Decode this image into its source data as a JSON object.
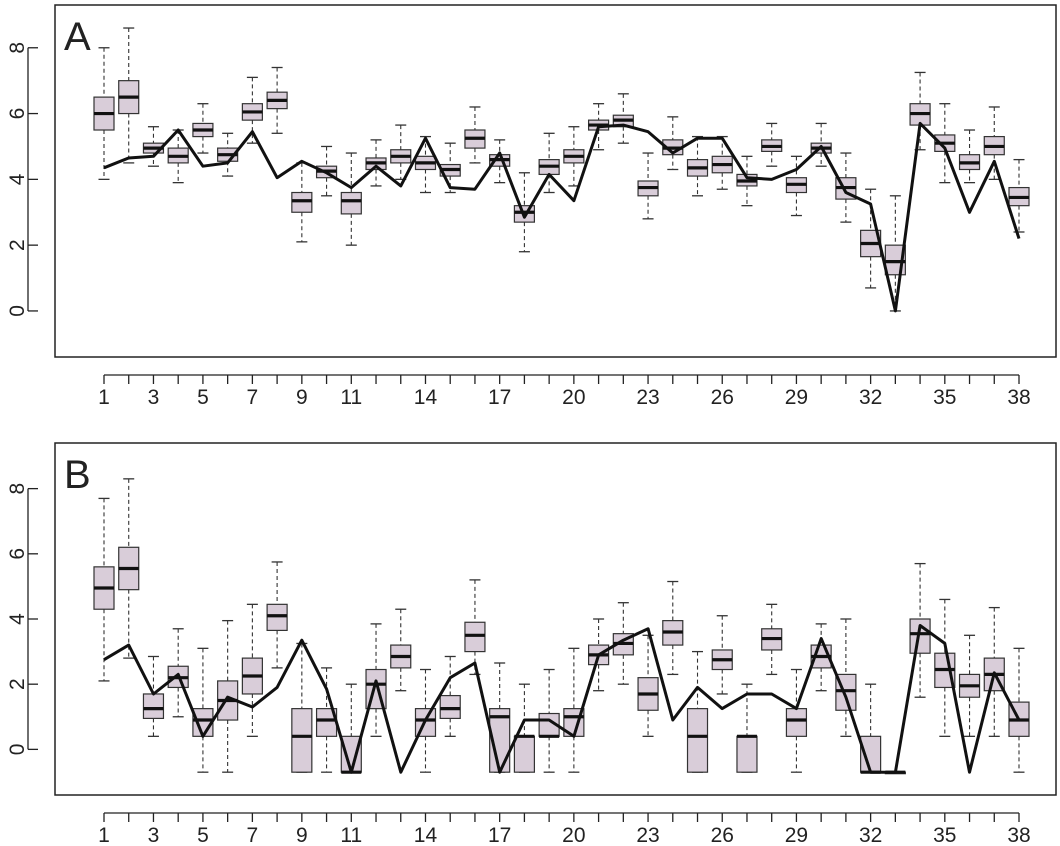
{
  "chart_data": [
    {
      "type": "box",
      "panel_label": "A",
      "x_tick_labels": [
        "1",
        "3",
        "5",
        "7",
        "9",
        "11",
        "14",
        "17",
        "20",
        "23",
        "26",
        "29",
        "32",
        "35",
        "38"
      ],
      "x_tick_positions": [
        1,
        3,
        5,
        7,
        9,
        11,
        14,
        17,
        20,
        23,
        26,
        29,
        32,
        35,
        38
      ],
      "y_tick_labels": [
        "0",
        "2",
        "4",
        "6",
        "8"
      ],
      "y_ticks": [
        0,
        2,
        4,
        6,
        8
      ],
      "xlim": [
        0.5,
        38.5
      ],
      "ylim": [
        -1.4,
        9.3
      ],
      "box_fill": "#d9cdd9",
      "line_color": "#111111",
      "boxes": [
        {
          "x": 1,
          "min": 4.0,
          "q1": 5.5,
          "median": 6.0,
          "q3": 6.5,
          "max": 8.0
        },
        {
          "x": 2,
          "min": 4.5,
          "q1": 6.0,
          "median": 6.5,
          "q3": 7.0,
          "max": 8.6
        },
        {
          "x": 3,
          "min": 4.4,
          "q1": 4.8,
          "median": 4.95,
          "q3": 5.1,
          "max": 5.6
        },
        {
          "x": 4,
          "min": 3.9,
          "q1": 4.5,
          "median": 4.7,
          "q3": 4.95,
          "max": 5.5
        },
        {
          "x": 5,
          "min": 4.8,
          "q1": 5.3,
          "median": 5.5,
          "q3": 5.7,
          "max": 6.3
        },
        {
          "x": 6,
          "min": 4.1,
          "q1": 4.55,
          "median": 4.75,
          "q3": 4.95,
          "max": 5.4
        },
        {
          "x": 7,
          "min": 5.1,
          "q1": 5.8,
          "median": 6.05,
          "q3": 6.3,
          "max": 7.1
        },
        {
          "x": 8,
          "min": 5.4,
          "q1": 6.15,
          "median": 6.4,
          "q3": 6.65,
          "max": 7.4
        },
        {
          "x": 9,
          "min": 2.1,
          "q1": 3.0,
          "median": 3.35,
          "q3": 3.6,
          "max": 4.5
        },
        {
          "x": 10,
          "min": 3.5,
          "q1": 4.05,
          "median": 4.25,
          "q3": 4.4,
          "max": 5.0
        },
        {
          "x": 11,
          "min": 2.0,
          "q1": 2.95,
          "median": 3.35,
          "q3": 3.6,
          "max": 4.8
        },
        {
          "x": 12,
          "min": 3.8,
          "q1": 4.3,
          "median": 4.5,
          "q3": 4.65,
          "max": 5.2
        },
        {
          "x": 13,
          "min": 4.0,
          "q1": 4.5,
          "median": 4.7,
          "q3": 4.9,
          "max": 5.65
        },
        {
          "x": 14,
          "min": 3.6,
          "q1": 4.3,
          "median": 4.5,
          "q3": 4.7,
          "max": 5.3
        },
        {
          "x": 15,
          "min": 3.6,
          "q1": 4.1,
          "median": 4.3,
          "q3": 4.45,
          "max": 5.1
        },
        {
          "x": 16,
          "min": 4.5,
          "q1": 4.95,
          "median": 5.25,
          "q3": 5.5,
          "max": 6.2
        },
        {
          "x": 17,
          "min": 3.9,
          "q1": 4.4,
          "median": 4.6,
          "q3": 4.75,
          "max": 5.2
        },
        {
          "x": 18,
          "min": 1.8,
          "q1": 2.7,
          "median": 3.0,
          "q3": 3.2,
          "max": 4.2
        },
        {
          "x": 19,
          "min": 3.6,
          "q1": 4.15,
          "median": 4.4,
          "q3": 4.6,
          "max": 5.4
        },
        {
          "x": 20,
          "min": 3.8,
          "q1": 4.5,
          "median": 4.7,
          "q3": 4.9,
          "max": 5.6
        },
        {
          "x": 21,
          "min": 4.9,
          "q1": 5.5,
          "median": 5.65,
          "q3": 5.8,
          "max": 6.3
        },
        {
          "x": 22,
          "min": 5.1,
          "q1": 5.6,
          "median": 5.8,
          "q3": 5.95,
          "max": 6.6
        },
        {
          "x": 23,
          "min": 2.8,
          "q1": 3.5,
          "median": 3.75,
          "q3": 3.95,
          "max": 4.8
        },
        {
          "x": 24,
          "min": 4.3,
          "q1": 4.75,
          "median": 4.95,
          "q3": 5.2,
          "max": 5.9
        },
        {
          "x": 25,
          "min": 3.5,
          "q1": 4.1,
          "median": 4.35,
          "q3": 4.6,
          "max": 5.3
        },
        {
          "x": 26,
          "min": 3.7,
          "q1": 4.2,
          "median": 4.45,
          "q3": 4.7,
          "max": 5.3
        },
        {
          "x": 27,
          "min": 3.2,
          "q1": 3.8,
          "median": 3.95,
          "q3": 4.15,
          "max": 4.7
        },
        {
          "x": 28,
          "min": 4.4,
          "q1": 4.85,
          "median": 5.0,
          "q3": 5.2,
          "max": 5.7
        },
        {
          "x": 29,
          "min": 2.9,
          "q1": 3.6,
          "median": 3.85,
          "q3": 4.05,
          "max": 4.7
        },
        {
          "x": 30,
          "min": 4.4,
          "q1": 4.8,
          "median": 4.95,
          "q3": 5.1,
          "max": 5.7
        },
        {
          "x": 31,
          "min": 2.7,
          "q1": 3.4,
          "median": 3.75,
          "q3": 4.05,
          "max": 4.8
        },
        {
          "x": 32,
          "min": 0.7,
          "q1": 1.65,
          "median": 2.05,
          "q3": 2.45,
          "max": 3.7
        },
        {
          "x": 33,
          "min": 0.0,
          "q1": 1.1,
          "median": 1.5,
          "q3": 2.0,
          "max": 3.5
        },
        {
          "x": 34,
          "min": 4.9,
          "q1": 5.65,
          "median": 6.0,
          "q3": 6.3,
          "max": 7.25
        },
        {
          "x": 35,
          "min": 3.9,
          "q1": 4.85,
          "median": 5.1,
          "q3": 5.35,
          "max": 6.3
        },
        {
          "x": 36,
          "min": 3.9,
          "q1": 4.3,
          "median": 4.5,
          "q3": 4.75,
          "max": 5.5
        },
        {
          "x": 37,
          "min": 4.0,
          "q1": 4.75,
          "median": 5.0,
          "q3": 5.3,
          "max": 6.2
        },
        {
          "x": 38,
          "min": 2.4,
          "q1": 3.2,
          "median": 3.45,
          "q3": 3.75,
          "max": 4.6
        }
      ],
      "line_values": [
        4.35,
        4.65,
        4.7,
        5.5,
        4.4,
        4.5,
        5.45,
        4.05,
        4.55,
        4.2,
        3.75,
        4.4,
        3.8,
        5.25,
        3.75,
        3.7,
        4.8,
        2.85,
        4.15,
        3.35,
        5.6,
        5.65,
        5.45,
        4.8,
        5.25,
        5.25,
        4.05,
        4.0,
        4.3,
        5.0,
        3.6,
        3.25,
        0.0,
        5.7,
        4.95,
        3.0,
        4.55,
        2.2
      ]
    },
    {
      "type": "box",
      "panel_label": "B",
      "x_tick_labels": [
        "1",
        "3",
        "5",
        "7",
        "9",
        "11",
        "14",
        "17",
        "20",
        "23",
        "26",
        "29",
        "32",
        "35",
        "38"
      ],
      "x_tick_positions": [
        1,
        3,
        5,
        7,
        9,
        11,
        14,
        17,
        20,
        23,
        26,
        29,
        32,
        35,
        38
      ],
      "y_tick_labels": [
        "0",
        "2",
        "4",
        "6",
        "8"
      ],
      "y_ticks": [
        0,
        2,
        4,
        6,
        8
      ],
      "xlim": [
        0.5,
        38.5
      ],
      "ylim": [
        -1.4,
        9.4
      ],
      "box_fill": "#d9cdd9",
      "line_color": "#111111",
      "boxes": [
        {
          "x": 1,
          "min": 2.1,
          "q1": 4.3,
          "median": 4.95,
          "q3": 5.6,
          "max": 7.7
        },
        {
          "x": 2,
          "min": 2.8,
          "q1": 4.9,
          "median": 5.55,
          "q3": 6.2,
          "max": 8.3
        },
        {
          "x": 3,
          "min": 0.4,
          "q1": 0.95,
          "median": 1.25,
          "q3": 1.7,
          "max": 2.85
        },
        {
          "x": 4,
          "min": 1.0,
          "q1": 1.9,
          "median": 2.2,
          "q3": 2.55,
          "max": 3.7
        },
        {
          "x": 5,
          "min": -0.7,
          "q1": 0.4,
          "median": 0.9,
          "q3": 1.25,
          "max": 3.1
        },
        {
          "x": 6,
          "min": -0.7,
          "q1": 0.9,
          "median": 1.5,
          "q3": 2.1,
          "max": 3.95
        },
        {
          "x": 7,
          "min": 0.4,
          "q1": 1.7,
          "median": 2.25,
          "q3": 2.8,
          "max": 4.45
        },
        {
          "x": 8,
          "min": 2.5,
          "q1": 3.65,
          "median": 4.1,
          "q3": 4.45,
          "max": 5.75
        },
        {
          "x": 9,
          "min": -0.7,
          "q1": -0.7,
          "median": 0.4,
          "q3": 1.25,
          "max": 3.25
        },
        {
          "x": 10,
          "min": -0.7,
          "q1": 0.4,
          "median": 0.9,
          "q3": 1.25,
          "max": 2.5
        },
        {
          "x": 11,
          "min": -0.7,
          "q1": -0.7,
          "median": -0.7,
          "q3": 0.4,
          "max": 2.0
        },
        {
          "x": 12,
          "min": 0.4,
          "q1": 1.25,
          "median": 2.0,
          "q3": 2.45,
          "max": 3.85
        },
        {
          "x": 13,
          "min": 1.8,
          "q1": 2.5,
          "median": 2.85,
          "q3": 3.2,
          "max": 4.3
        },
        {
          "x": 14,
          "min": -0.7,
          "q1": 0.4,
          "median": 0.9,
          "q3": 1.25,
          "max": 2.45
        },
        {
          "x": 15,
          "min": 0.4,
          "q1": 0.95,
          "median": 1.25,
          "q3": 1.65,
          "max": 2.85
        },
        {
          "x": 16,
          "min": 2.3,
          "q1": 3.0,
          "median": 3.5,
          "q3": 3.9,
          "max": 5.2
        },
        {
          "x": 17,
          "min": -0.7,
          "q1": -0.7,
          "median": 1.0,
          "q3": 1.25,
          "max": 2.65
        },
        {
          "x": 18,
          "min": -0.7,
          "q1": -0.7,
          "median": 0.4,
          "q3": 0.4,
          "max": 2.0
        },
        {
          "x": 19,
          "min": -0.7,
          "q1": 0.4,
          "median": 0.4,
          "q3": 1.1,
          "max": 2.45
        },
        {
          "x": 20,
          "min": -0.7,
          "q1": 0.4,
          "median": 1.0,
          "q3": 1.25,
          "max": 3.1
        },
        {
          "x": 21,
          "min": 1.8,
          "q1": 2.6,
          "median": 2.9,
          "q3": 3.2,
          "max": 4.0
        },
        {
          "x": 22,
          "min": 2.0,
          "q1": 2.9,
          "median": 3.25,
          "q3": 3.55,
          "max": 4.5
        },
        {
          "x": 23,
          "min": 0.4,
          "q1": 1.2,
          "median": 1.7,
          "q3": 2.2,
          "max": 3.5
        },
        {
          "x": 24,
          "min": 2.3,
          "q1": 3.2,
          "median": 3.6,
          "q3": 3.95,
          "max": 5.15
        },
        {
          "x": 25,
          "min": -0.7,
          "q1": -0.7,
          "median": 0.4,
          "q3": 1.25,
          "max": 3.0
        },
        {
          "x": 26,
          "min": 1.7,
          "q1": 2.45,
          "median": 2.75,
          "q3": 3.05,
          "max": 4.1
        },
        {
          "x": 27,
          "min": -0.7,
          "q1": -0.7,
          "median": 0.4,
          "q3": 0.4,
          "max": 2.0
        },
        {
          "x": 28,
          "min": 2.3,
          "q1": 3.05,
          "median": 3.4,
          "q3": 3.7,
          "max": 4.45
        },
        {
          "x": 29,
          "min": -0.7,
          "q1": 0.4,
          "median": 0.9,
          "q3": 1.25,
          "max": 2.45
        },
        {
          "x": 30,
          "min": 1.8,
          "q1": 2.5,
          "median": 2.85,
          "q3": 3.2,
          "max": 3.85
        },
        {
          "x": 31,
          "min": 0.4,
          "q1": 1.2,
          "median": 1.8,
          "q3": 2.3,
          "max": 4.0
        },
        {
          "x": 32,
          "min": -0.7,
          "q1": -0.7,
          "median": -0.7,
          "q3": 0.4,
          "max": 2.0
        },
        {
          "x": 33,
          "min": -0.7,
          "q1": -0.7,
          "median": -0.7,
          "q3": -0.7,
          "max": -0.7
        },
        {
          "x": 34,
          "min": 1.6,
          "q1": 2.95,
          "median": 3.55,
          "q3": 4.0,
          "max": 5.7
        },
        {
          "x": 35,
          "min": 0.4,
          "q1": 1.9,
          "median": 2.45,
          "q3": 2.95,
          "max": 4.6
        },
        {
          "x": 36,
          "min": 0.4,
          "q1": 1.6,
          "median": 1.95,
          "q3": 2.3,
          "max": 3.5
        },
        {
          "x": 37,
          "min": 0.4,
          "q1": 1.8,
          "median": 2.3,
          "q3": 2.8,
          "max": 4.35
        },
        {
          "x": 38,
          "min": -0.7,
          "q1": 0.4,
          "median": 0.9,
          "q3": 1.45,
          "max": 3.1
        }
      ],
      "line_values": [
        2.75,
        3.2,
        1.7,
        2.3,
        0.4,
        1.6,
        1.3,
        1.9,
        3.35,
        1.85,
        -0.7,
        2.1,
        -0.7,
        0.9,
        2.2,
        2.65,
        -0.7,
        0.9,
        0.9,
        0.4,
        2.9,
        3.35,
        3.7,
        0.9,
        1.9,
        1.25,
        1.7,
        1.7,
        1.25,
        3.4,
        1.6,
        -0.7,
        -0.7,
        3.8,
        3.25,
        -0.7,
        2.35,
        0.9
      ]
    }
  ]
}
